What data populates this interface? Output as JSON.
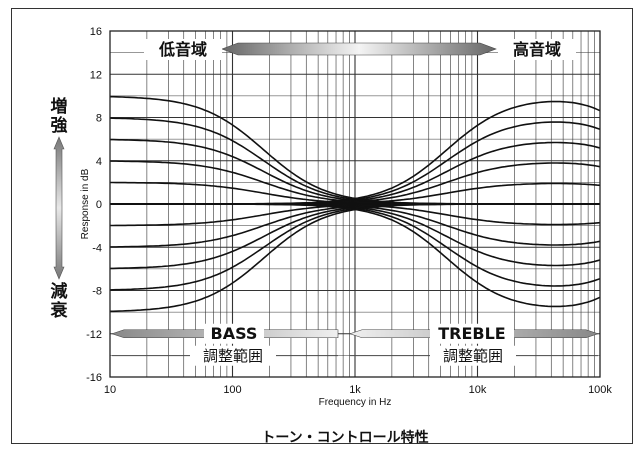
{
  "chart_data": {
    "type": "line",
    "title": "トーン・コントロール特性",
    "xlabel": "Frequency in Hz",
    "ylabel": "Response in dB",
    "x_scale": "log",
    "xlim": [
      10,
      100000
    ],
    "ylim": [
      -16,
      16
    ],
    "x_ticks": [
      10,
      100,
      1000,
      10000,
      100000
    ],
    "x_tick_labels": [
      "10",
      "100",
      "1k",
      "10k",
      "100k"
    ],
    "y_ticks": [
      -16,
      -12,
      -8,
      -4,
      0,
      4,
      8,
      12,
      16
    ],
    "y_tick_labels": [
      "-16",
      "-12",
      "-8",
      "-4",
      "0",
      "4",
      "8",
      "12",
      "16"
    ],
    "grid": true,
    "bass_levels": [
      10,
      8,
      6,
      4,
      2,
      0,
      -2,
      -4,
      -6,
      -8,
      -10
    ],
    "treble_levels": [
      10,
      8,
      6,
      4,
      2,
      0,
      -2,
      -4,
      -6,
      -8,
      -10
    ],
    "annotations": {
      "low_range": "低音域",
      "high_range": "高音域",
      "boost_chars": [
        "増",
        "強"
      ],
      "cut_chars": [
        "減",
        "衰"
      ],
      "bass": "BASS",
      "treble": "TREBLE",
      "adjust_range": "調整範囲"
    }
  },
  "colors": {
    "curve": "#111111",
    "grid": "#333333",
    "arrow_dark": "#555555",
    "arrow_light": "#f2f2f2"
  }
}
